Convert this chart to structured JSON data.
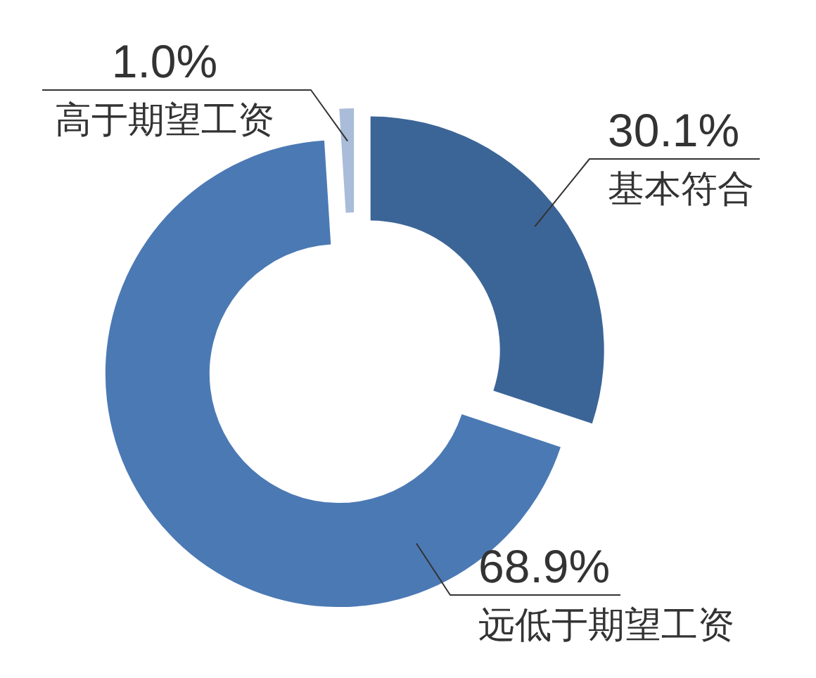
{
  "chart_data": {
    "type": "donut",
    "categories": [
      "基本符合",
      "远低于期望工资",
      "高于期望工资"
    ],
    "values": [
      30.1,
      68.9,
      1.0
    ],
    "colors": [
      "#3c6597",
      "#4b79b4",
      "#a9bcd9"
    ],
    "value_labels": [
      "30.1%",
      "68.9%",
      "1.0%"
    ]
  }
}
